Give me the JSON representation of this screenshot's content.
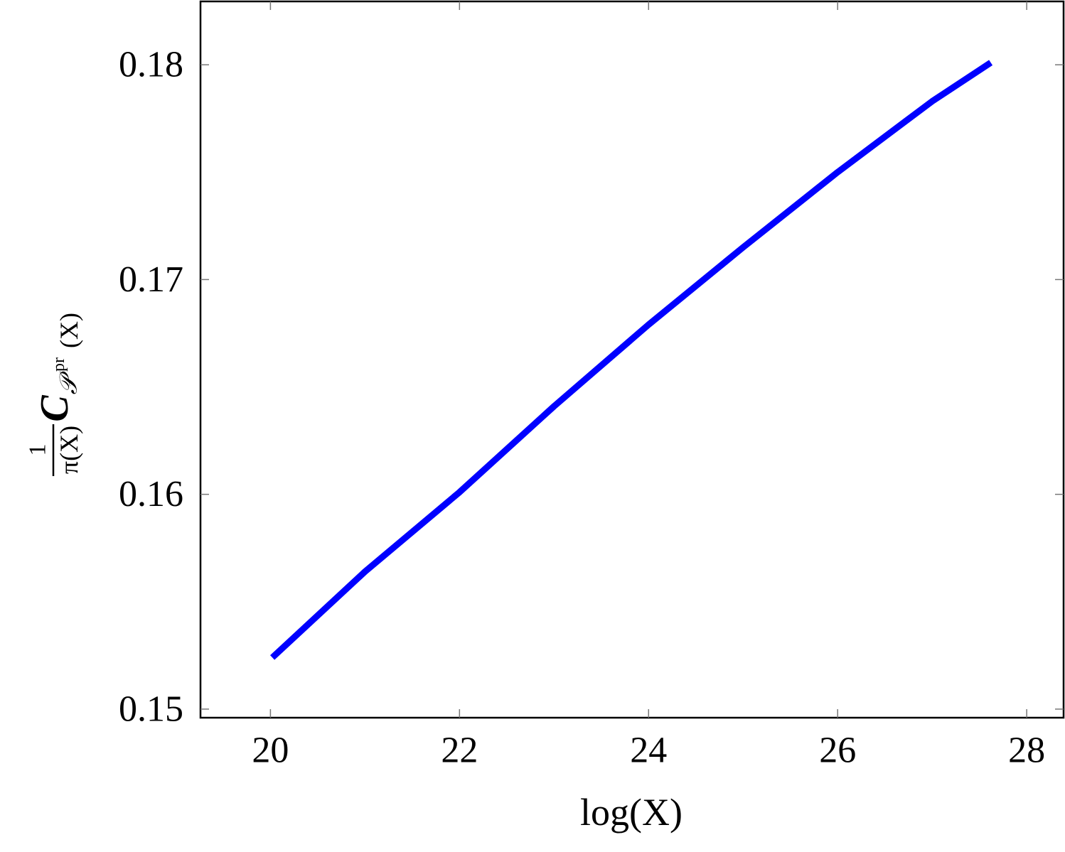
{
  "chart_data": {
    "type": "line",
    "xlabel": "log(X)",
    "ylabel": {
      "numerator": "1",
      "denominator": "π(X)",
      "main": "C",
      "subscript": "𝒫",
      "superscript": "pr",
      "tail": "(X)"
    },
    "x": [
      20.02,
      21,
      22,
      23,
      24,
      25,
      26,
      27,
      27.62
    ],
    "series": [
      {
        "color": "#0000ff",
        "values": [
          0.1524,
          0.1564,
          0.1601,
          0.1641,
          0.1679,
          0.1715,
          0.175,
          0.1783,
          0.1801
        ]
      }
    ],
    "xlim": [
      19.26,
      28.39
    ],
    "ylim": [
      0.1496,
      0.18295
    ],
    "xticks": [
      20,
      22,
      24,
      26,
      28
    ],
    "yticks": [
      0.15,
      0.16,
      0.17,
      0.18
    ],
    "grid": false
  }
}
